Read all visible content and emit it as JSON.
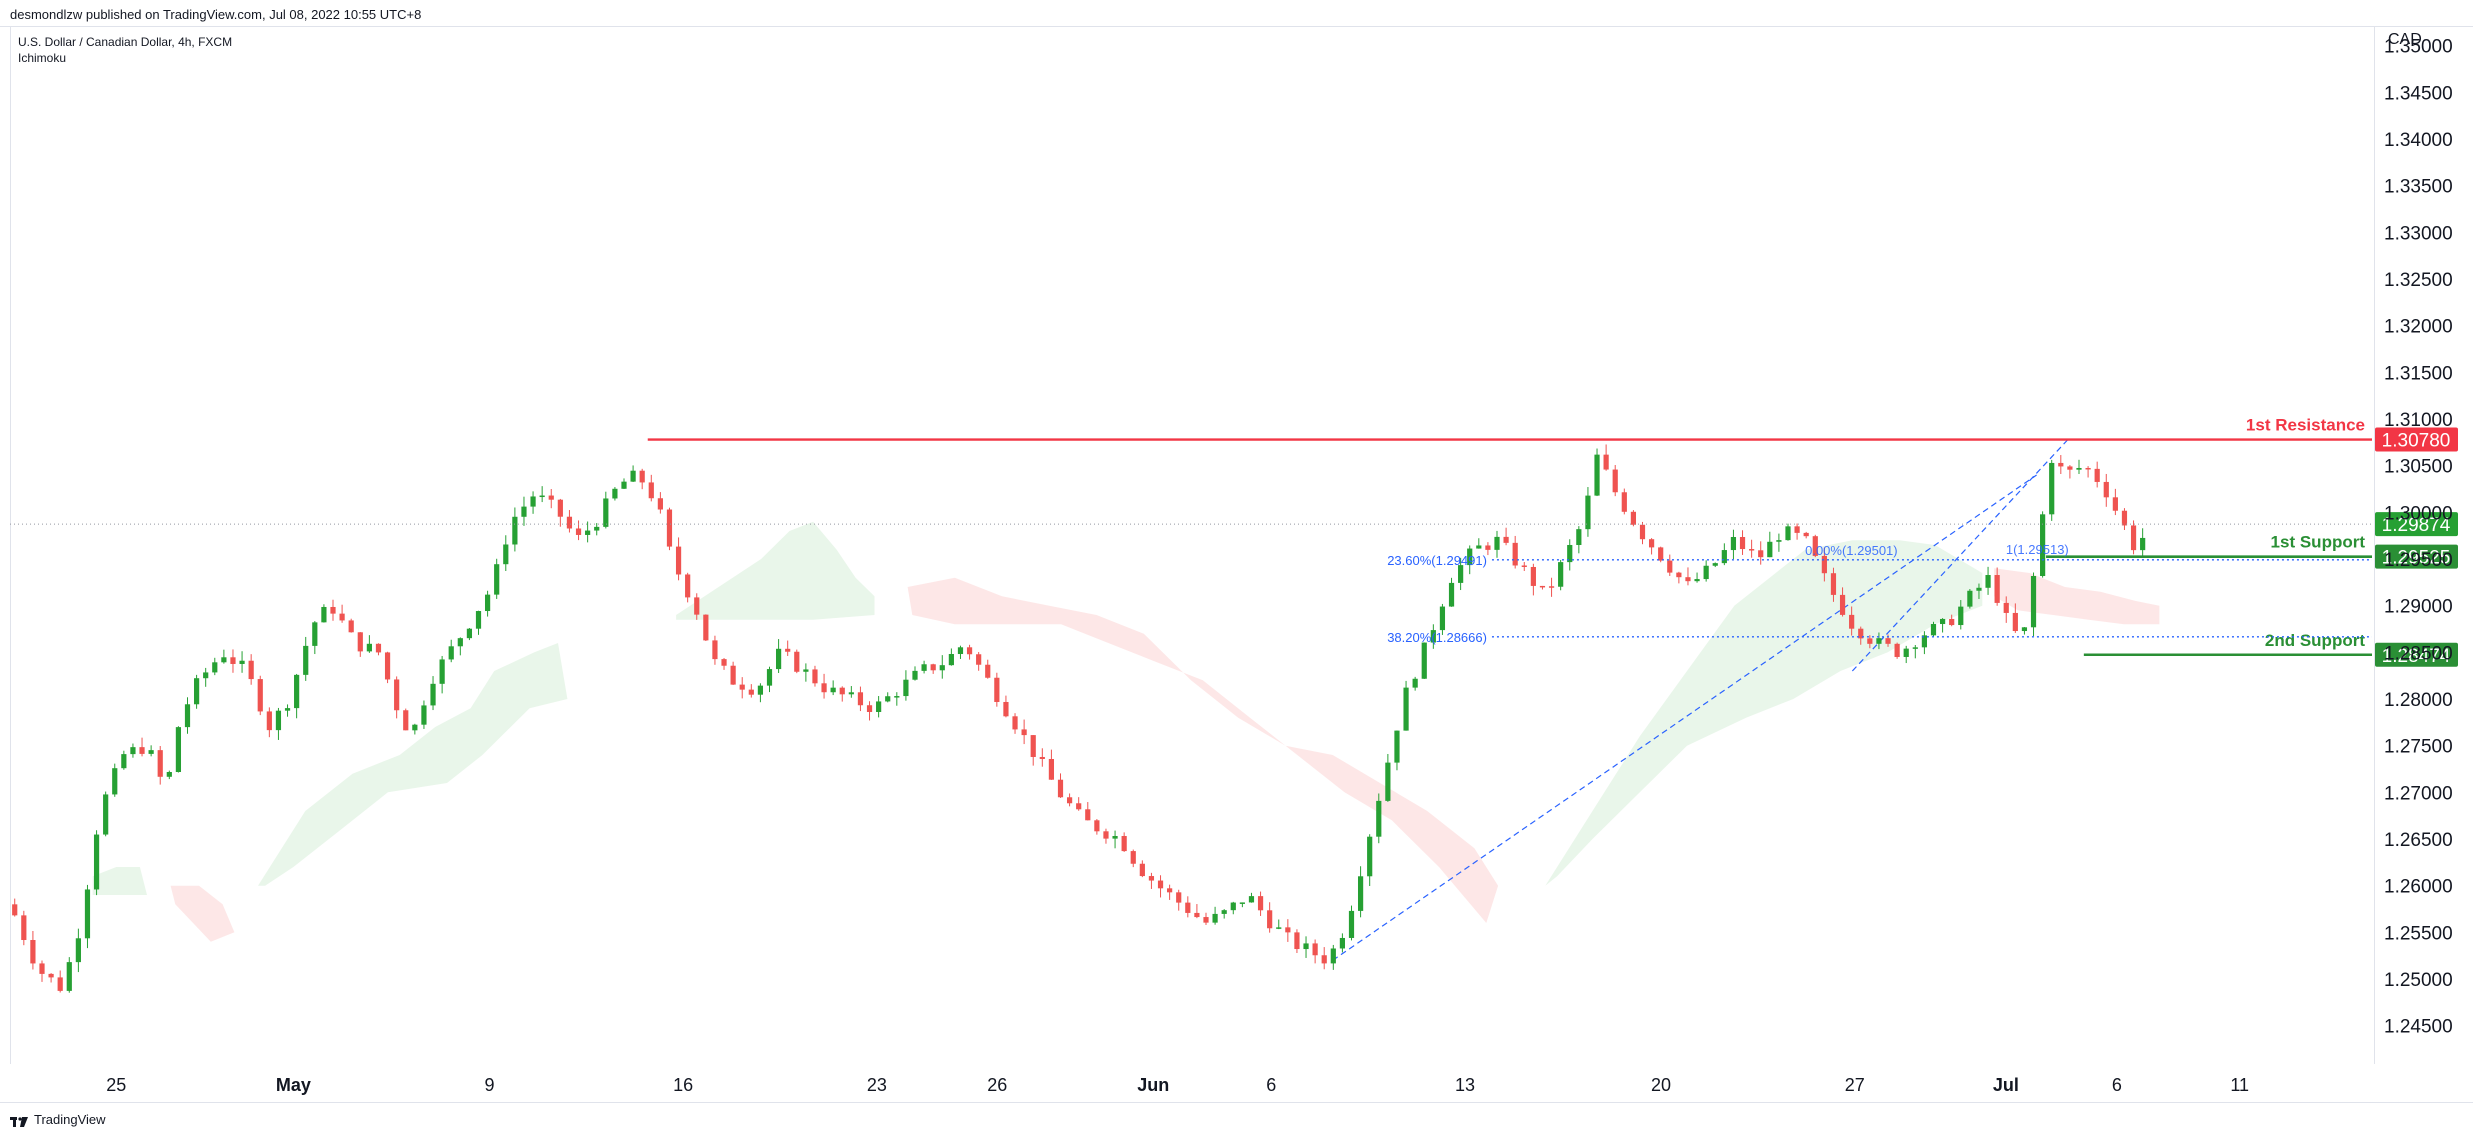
{
  "header": {
    "publisher": "desmondlzw published on TradingView.com, Jul 08, 2022 10:55 UTC+8",
    "symbol": "U.S. Dollar / Canadian Dollar, 4h, FXCM",
    "indicator": "Ichimoku",
    "currency": "CAD"
  },
  "footer": {
    "brand": "TradingView"
  },
  "colors": {
    "up": "#26a033",
    "down": "#ef5350",
    "resistance": "#f23645",
    "support": "#2a8f35",
    "fib": "#2962ff",
    "cloud_bull": "#e8f5e9",
    "cloud_bear": "#fde6e6"
  },
  "chart_data": {
    "type": "candlestick",
    "title": "U.S. Dollar / Canadian Dollar, 4h, FXCM",
    "ylabel": "CAD",
    "ylim": [
      1.241,
      1.352
    ],
    "y_ticks": [
      "1.24500",
      "1.25000",
      "1.25500",
      "1.26000",
      "1.26500",
      "1.27000",
      "1.27500",
      "1.28000",
      "1.28500",
      "1.29000",
      "1.29500",
      "1.30000",
      "1.30500",
      "1.31000",
      "1.31500",
      "1.32000",
      "1.32500",
      "1.33000",
      "1.33500",
      "1.34000",
      "1.34500",
      "1.35000"
    ],
    "x_ticks": [
      {
        "label": "25",
        "bold": false,
        "pos": 0.045
      },
      {
        "label": "May",
        "bold": true,
        "pos": 0.12
      },
      {
        "label": "9",
        "bold": false,
        "pos": 0.203
      },
      {
        "label": "16",
        "bold": false,
        "pos": 0.285
      },
      {
        "label": "23",
        "bold": false,
        "pos": 0.367
      },
      {
        "label": "26",
        "bold": false,
        "pos": 0.418
      },
      {
        "label": "Jun",
        "bold": true,
        "pos": 0.484
      },
      {
        "label": "6",
        "bold": false,
        "pos": 0.534
      },
      {
        "label": "13",
        "bold": false,
        "pos": 0.616
      },
      {
        "label": "20",
        "bold": false,
        "pos": 0.699
      },
      {
        "label": "27",
        "bold": false,
        "pos": 0.781
      },
      {
        "label": "Jul",
        "bold": true,
        "pos": 0.845
      },
      {
        "label": "6",
        "bold": false,
        "pos": 0.892
      },
      {
        "label": "11",
        "bold": false,
        "pos": 0.944
      }
    ],
    "last_price": 1.29874,
    "levels": [
      {
        "name": "1st Resistance",
        "value": 1.3078,
        "label": "1.30780",
        "kind": "resistance",
        "start": 0.27
      },
      {
        "name": "1st Support",
        "value": 1.29525,
        "label": "1.29525",
        "kind": "support",
        "start": 0.862
      },
      {
        "name": "2nd Support",
        "value": 1.28474,
        "label": "1.28474",
        "kind": "support",
        "start": 0.878
      }
    ],
    "fib_levels": [
      {
        "label": "23.60%(1.29491)",
        "value": 1.29491,
        "start": 0.58
      },
      {
        "label": "38.20%(1.28666)",
        "value": 1.28666,
        "start": 0.58
      },
      {
        "label": "0.00%(1.29501)",
        "value": 1.29501,
        "start": 0.76
      },
      {
        "label": "1(1.29513)",
        "value": 1.29513,
        "start": 0.845
      }
    ],
    "price_path": [
      [
        0.0,
        1.258
      ],
      [
        0.012,
        1.251
      ],
      [
        0.022,
        1.249
      ],
      [
        0.03,
        1.256
      ],
      [
        0.038,
        1.268
      ],
      [
        0.048,
        1.274
      ],
      [
        0.058,
        1.275
      ],
      [
        0.066,
        1.27
      ],
      [
        0.072,
        1.278
      ],
      [
        0.08,
        1.282
      ],
      [
        0.09,
        1.285
      ],
      [
        0.1,
        1.283
      ],
      [
        0.11,
        1.277
      ],
      [
        0.118,
        1.28
      ],
      [
        0.128,
        1.288
      ],
      [
        0.136,
        1.29
      ],
      [
        0.146,
        1.286
      ],
      [
        0.156,
        1.285
      ],
      [
        0.164,
        1.279
      ],
      [
        0.17,
        1.276
      ],
      [
        0.178,
        1.282
      ],
      [
        0.186,
        1.285
      ],
      [
        0.194,
        1.288
      ],
      [
        0.204,
        1.292
      ],
      [
        0.212,
        1.299
      ],
      [
        0.222,
        1.302
      ],
      [
        0.232,
        1.3
      ],
      [
        0.24,
        1.297
      ],
      [
        0.248,
        1.299
      ],
      [
        0.258,
        1.303
      ],
      [
        0.266,
        1.304
      ],
      [
        0.274,
        1.301
      ],
      [
        0.28,
        1.295
      ],
      [
        0.29,
        1.29
      ],
      [
        0.298,
        1.284
      ],
      [
        0.306,
        1.282
      ],
      [
        0.316,
        1.281
      ],
      [
        0.326,
        1.285
      ],
      [
        0.336,
        1.283
      ],
      [
        0.346,
        1.281
      ],
      [
        0.356,
        1.28
      ],
      [
        0.366,
        1.279
      ],
      [
        0.376,
        1.281
      ],
      [
        0.386,
        1.283
      ],
      [
        0.396,
        1.284
      ],
      [
        0.404,
        1.286
      ],
      [
        0.414,
        1.282
      ],
      [
        0.424,
        1.278
      ],
      [
        0.434,
        1.274
      ],
      [
        0.444,
        1.27
      ],
      [
        0.454,
        1.267
      ],
      [
        0.462,
        1.266
      ],
      [
        0.47,
        1.265
      ],
      [
        0.478,
        1.262
      ],
      [
        0.486,
        1.26
      ],
      [
        0.496,
        1.258
      ],
      [
        0.506,
        1.256
      ],
      [
        0.514,
        1.257
      ],
      [
        0.524,
        1.259
      ],
      [
        0.534,
        1.256
      ],
      [
        0.542,
        1.254
      ],
      [
        0.55,
        1.253
      ],
      [
        0.558,
        1.252
      ],
      [
        0.566,
        1.256
      ],
      [
        0.574,
        1.264
      ],
      [
        0.582,
        1.272
      ],
      [
        0.59,
        1.28
      ],
      [
        0.6,
        1.286
      ],
      [
        0.61,
        1.293
      ],
      [
        0.62,
        1.296
      ],
      [
        0.63,
        1.297
      ],
      [
        0.64,
        1.294
      ],
      [
        0.65,
        1.291
      ],
      [
        0.658,
        1.295
      ],
      [
        0.666,
        1.299
      ],
      [
        0.672,
        1.306
      ],
      [
        0.68,
        1.302
      ],
      [
        0.69,
        1.298
      ],
      [
        0.7,
        1.295
      ],
      [
        0.71,
        1.292
      ],
      [
        0.72,
        1.294
      ],
      [
        0.73,
        1.297
      ],
      [
        0.74,
        1.295
      ],
      [
        0.75,
        1.298
      ],
      [
        0.76,
        1.297
      ],
      [
        0.77,
        1.292
      ],
      [
        0.78,
        1.288
      ],
      [
        0.79,
        1.286
      ],
      [
        0.8,
        1.285
      ],
      [
        0.81,
        1.287
      ],
      [
        0.82,
        1.288
      ],
      [
        0.83,
        1.291
      ],
      [
        0.838,
        1.293
      ],
      [
        0.846,
        1.288
      ],
      [
        0.852,
        1.286
      ],
      [
        0.858,
        1.295
      ],
      [
        0.864,
        1.306
      ],
      [
        0.87,
        1.304
      ],
      [
        0.878,
        1.305
      ],
      [
        0.886,
        1.303
      ],
      [
        0.894,
        1.299
      ],
      [
        0.9,
        1.296
      ],
      [
        0.906,
        1.2987
      ]
    ],
    "cloud": [
      {
        "kind": "bull",
        "points": [
          [
            0.035,
            1.261
          ],
          [
            0.045,
            1.262
          ],
          [
            0.055,
            1.262
          ],
          [
            0.058,
            1.259
          ],
          [
            0.035,
            1.259
          ]
        ]
      },
      {
        "kind": "bear",
        "points": [
          [
            0.068,
            1.26
          ],
          [
            0.08,
            1.26
          ],
          [
            0.09,
            1.258
          ],
          [
            0.095,
            1.255
          ],
          [
            0.085,
            1.254
          ],
          [
            0.07,
            1.258
          ]
        ]
      },
      {
        "kind": "bull",
        "points": [
          [
            0.105,
            1.26
          ],
          [
            0.125,
            1.268
          ],
          [
            0.145,
            1.272
          ],
          [
            0.165,
            1.274
          ],
          [
            0.18,
            1.277
          ],
          [
            0.195,
            1.279
          ],
          [
            0.205,
            1.283
          ],
          [
            0.222,
            1.285
          ],
          [
            0.232,
            1.286
          ],
          [
            0.236,
            1.28
          ],
          [
            0.22,
            1.279
          ],
          [
            0.2,
            1.274
          ],
          [
            0.185,
            1.271
          ],
          [
            0.16,
            1.27
          ],
          [
            0.14,
            1.266
          ],
          [
            0.12,
            1.262
          ],
          [
            0.108,
            1.26
          ]
        ]
      },
      {
        "kind": "bull",
        "points": [
          [
            0.282,
            1.289
          ],
          [
            0.3,
            1.292
          ],
          [
            0.318,
            1.295
          ],
          [
            0.33,
            1.298
          ],
          [
            0.34,
            1.299
          ],
          [
            0.35,
            1.296
          ],
          [
            0.358,
            1.293
          ],
          [
            0.366,
            1.291
          ],
          [
            0.366,
            1.289
          ],
          [
            0.34,
            1.2885
          ],
          [
            0.3,
            1.2885
          ],
          [
            0.282,
            1.2885
          ]
        ]
      },
      {
        "kind": "bear",
        "points": [
          [
            0.38,
            1.292
          ],
          [
            0.4,
            1.293
          ],
          [
            0.42,
            1.291
          ],
          [
            0.44,
            1.29
          ],
          [
            0.46,
            1.289
          ],
          [
            0.48,
            1.287
          ],
          [
            0.5,
            1.282
          ],
          [
            0.52,
            1.278
          ],
          [
            0.54,
            1.275
          ],
          [
            0.56,
            1.274
          ],
          [
            0.58,
            1.271
          ],
          [
            0.6,
            1.268
          ],
          [
            0.62,
            1.264
          ],
          [
            0.63,
            1.26
          ],
          [
            0.625,
            1.256
          ],
          [
            0.605,
            1.262
          ],
          [
            0.585,
            1.267
          ],
          [
            0.565,
            1.27
          ],
          [
            0.545,
            1.274
          ],
          [
            0.525,
            1.278
          ],
          [
            0.505,
            1.282
          ],
          [
            0.485,
            1.284
          ],
          [
            0.465,
            1.286
          ],
          [
            0.445,
            1.288
          ],
          [
            0.425,
            1.288
          ],
          [
            0.4,
            1.288
          ],
          [
            0.382,
            1.289
          ]
        ]
      },
      {
        "kind": "bull",
        "points": [
          [
            0.65,
            1.26
          ],
          [
            0.67,
            1.268
          ],
          [
            0.69,
            1.276
          ],
          [
            0.71,
            1.283
          ],
          [
            0.73,
            1.29
          ],
          [
            0.745,
            1.293
          ],
          [
            0.76,
            1.296
          ],
          [
            0.78,
            1.297
          ],
          [
            0.8,
            1.297
          ],
          [
            0.815,
            1.2965
          ],
          [
            0.825,
            1.295
          ],
          [
            0.835,
            1.2935
          ],
          [
            0.835,
            1.29
          ],
          [
            0.815,
            1.288
          ],
          [
            0.795,
            1.285
          ],
          [
            0.775,
            1.283
          ],
          [
            0.755,
            1.28
          ],
          [
            0.735,
            1.278
          ],
          [
            0.71,
            1.275
          ],
          [
            0.69,
            1.27
          ],
          [
            0.67,
            1.265
          ],
          [
            0.655,
            1.261
          ]
        ]
      },
      {
        "kind": "bear",
        "points": [
          [
            0.84,
            1.294
          ],
          [
            0.855,
            1.2935
          ],
          [
            0.87,
            1.292
          ],
          [
            0.885,
            1.2915
          ],
          [
            0.9,
            1.2905
          ],
          [
            0.91,
            1.29
          ],
          [
            0.91,
            1.288
          ],
          [
            0.895,
            1.288
          ],
          [
            0.88,
            1.2885
          ],
          [
            0.865,
            1.289
          ],
          [
            0.85,
            1.2895
          ],
          [
            0.84,
            1.291
          ]
        ]
      }
    ],
    "trendlines": [
      {
        "from": [
          0.56,
          1.252
        ],
        "to": [
          0.858,
          1.304
        ]
      },
      {
        "from": [
          0.78,
          1.283
        ],
        "to": [
          0.872,
          1.308
        ]
      }
    ]
  }
}
